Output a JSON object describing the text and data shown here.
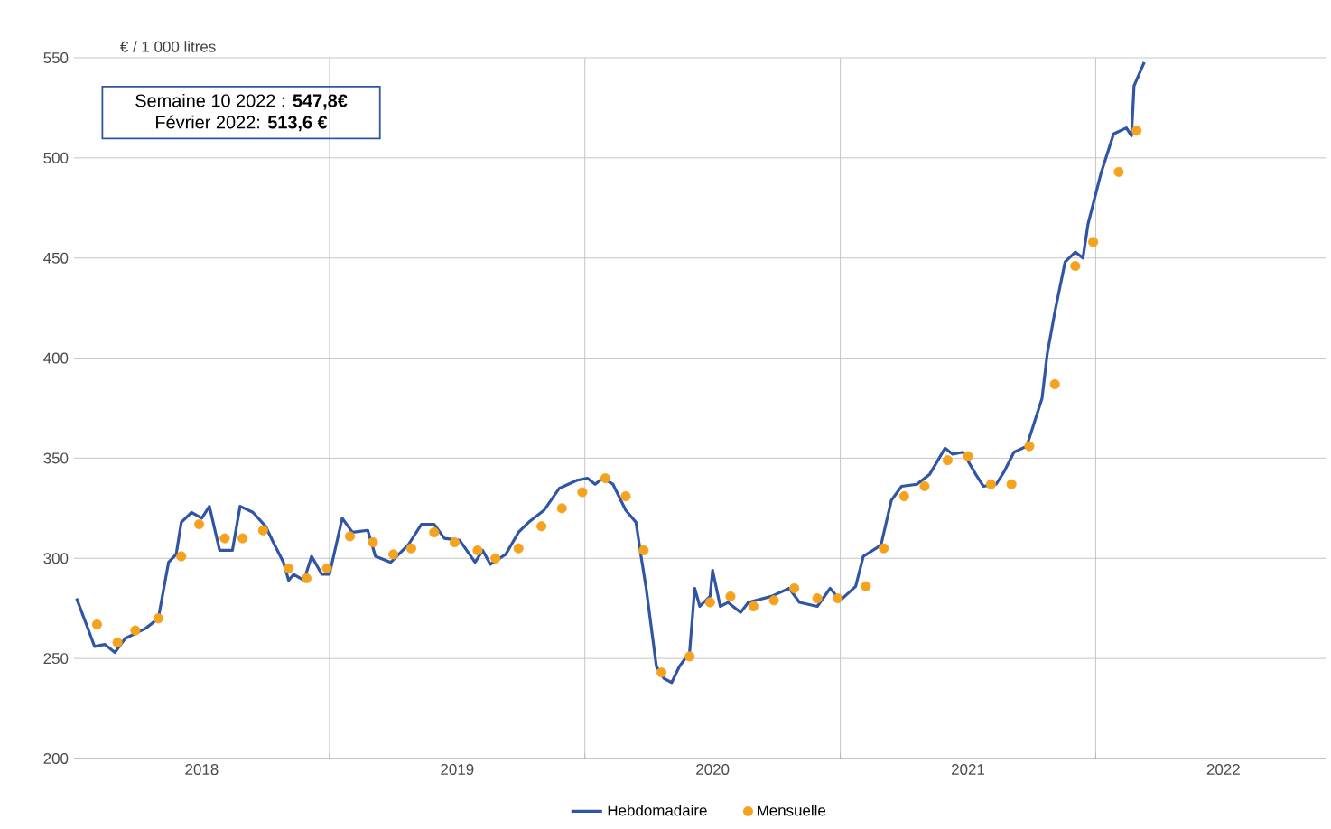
{
  "chart_data": {
    "type": "line",
    "ylabel": "€ / 1 000 litres",
    "annotations": [
      "Semaine 10 2022 : **547,8€**",
      "Février 2022: **513,6 €**"
    ],
    "xlim": [
      2018,
      2022.9
    ],
    "xticks": [
      {
        "value": 2019,
        "label": null
      },
      {
        "value": 2020,
        "label": null
      },
      {
        "value": 2021,
        "label": null
      },
      {
        "value": 2022,
        "label": null
      },
      {
        "value": 2018.5,
        "label": "2018"
      },
      {
        "value": 2019.5,
        "label": "2019"
      },
      {
        "value": 2020.5,
        "label": "2020"
      },
      {
        "value": 2021.5,
        "label": "2021"
      },
      {
        "value": 2022.5,
        "label": "2022"
      }
    ],
    "ylim": [
      200,
      550
    ],
    "yticks": [
      200,
      250,
      300,
      350,
      400,
      450,
      500,
      550
    ],
    "grid": true,
    "legend": "bottom",
    "series": [
      {
        "name": "Hebdomadaire",
        "marker": "none",
        "color": "#2f55a4",
        "x": [
          2018.01,
          2018.06,
          2018.08,
          2018.12,
          2018.16,
          2018.2,
          2018.28,
          2018.33,
          2018.37,
          2018.4,
          2018.42,
          2018.46,
          2018.5,
          2018.53,
          2018.57,
          2018.62,
          2018.65,
          2018.7,
          2018.75,
          2018.78,
          2018.82,
          2018.84,
          2018.86,
          2018.9,
          2018.93,
          2018.97,
          2019.0,
          2019.05,
          2019.09,
          2019.15,
          2019.18,
          2019.24,
          2019.31,
          2019.36,
          2019.41,
          2019.45,
          2019.51,
          2019.57,
          2019.6,
          2019.63,
          2019.69,
          2019.74,
          2019.78,
          2019.84,
          2019.9,
          2019.97,
          2020.01,
          2020.04,
          2020.07,
          2020.11,
          2020.16,
          2020.2,
          2020.22,
          2020.24,
          2020.28,
          2020.31,
          2020.34,
          2020.37,
          2020.41,
          2020.43,
          2020.45,
          2020.49,
          2020.5,
          2020.53,
          2020.56,
          2020.61,
          2020.64,
          2020.73,
          2020.8,
          2020.84,
          2020.91,
          2020.96,
          2021.0,
          2021.06,
          2021.09,
          2021.14,
          2021.16,
          2021.2,
          2021.24,
          2021.3,
          2021.35,
          2021.41,
          2021.44,
          2021.48,
          2021.53,
          2021.56,
          2021.61,
          2021.64,
          2021.68,
          2021.73,
          2021.76,
          2021.79,
          2021.81,
          2021.84,
          2021.88,
          2021.92,
          2021.95,
          2021.97,
          2022.02,
          2022.07,
          2022.12,
          2022.14,
          2022.15,
          2022.19
        ],
        "values": [
          280,
          263,
          256,
          257,
          253,
          260,
          265,
          270,
          298,
          302,
          318,
          323,
          320,
          326,
          304,
          304,
          326,
          323,
          316,
          308,
          298,
          289,
          292,
          289,
          301,
          292,
          292,
          320,
          313,
          314,
          301,
          298,
          307,
          317,
          317,
          310,
          309,
          298,
          304,
          297,
          302,
          313,
          318,
          324,
          335,
          339,
          340,
          337,
          340,
          337,
          324,
          318,
          301,
          285,
          246,
          240,
          238,
          246,
          253,
          285,
          276,
          281,
          294,
          276,
          278,
          273,
          278,
          281,
          285,
          278,
          276,
          285,
          279,
          286,
          301,
          305,
          307,
          329,
          336,
          337,
          342,
          355,
          352,
          353,
          342,
          336,
          337,
          343,
          353,
          356,
          368,
          380,
          402,
          423,
          448,
          453,
          450,
          467,
          492,
          512,
          515,
          511,
          536,
          547.8
        ]
      },
      {
        "name": "Mensuelle",
        "type": "scatter",
        "marker": "circle",
        "color": "#f5a31f",
        "x": [
          2018.09,
          2018.17,
          2018.24,
          2018.33,
          2018.42,
          2018.49,
          2018.59,
          2018.66,
          2018.74,
          2018.84,
          2018.91,
          2018.99,
          2019.08,
          2019.17,
          2019.25,
          2019.32,
          2019.41,
          2019.49,
          2019.58,
          2019.65,
          2019.74,
          2019.83,
          2019.91,
          2019.99,
          2020.08,
          2020.16,
          2020.23,
          2020.3,
          2020.41,
          2020.49,
          2020.57,
          2020.66,
          2020.74,
          2020.82,
          2020.91,
          2020.99,
          2021.1,
          2021.17,
          2021.25,
          2021.33,
          2021.42,
          2021.5,
          2021.59,
          2021.67,
          2021.74,
          2021.84,
          2021.92,
          2021.99,
          2022.09,
          2022.16
        ],
        "values": [
          267,
          258,
          264,
          270,
          301,
          317,
          310,
          310,
          314,
          295,
          290,
          295,
          311,
          308,
          302,
          305,
          313,
          308,
          304,
          300,
          305,
          316,
          325,
          333,
          340,
          331,
          304,
          243,
          251,
          278,
          281,
          276,
          279,
          285,
          280,
          280,
          286,
          305,
          331,
          336,
          349,
          351,
          337,
          337,
          356,
          387,
          446,
          458,
          493,
          513.6
        ]
      }
    ]
  }
}
